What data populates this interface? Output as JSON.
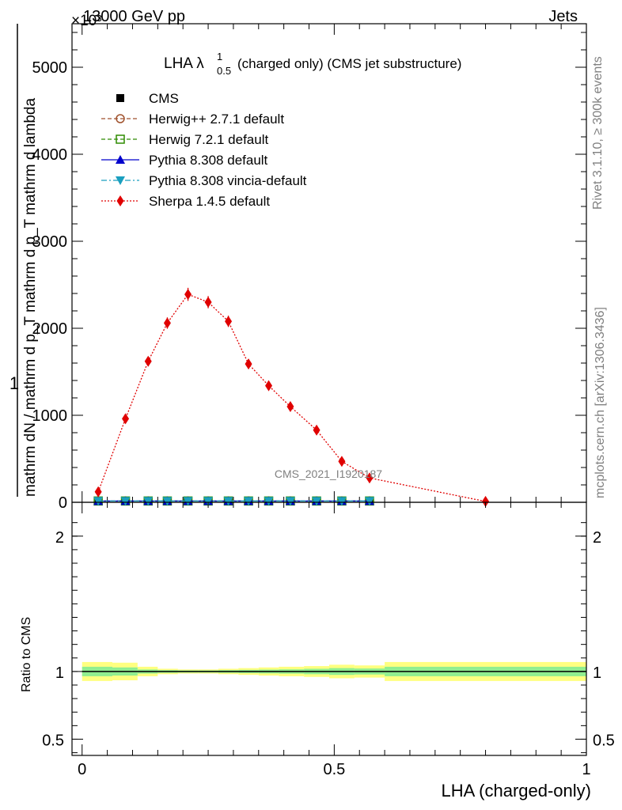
{
  "header": {
    "left": "13000 GeV pp",
    "right": "Jets",
    "exponent": "×10³"
  },
  "side": {
    "rivet": "Rivet 3.1.10, ≥ 300k events",
    "mcplots": "mcplots.cern.ch [arXiv:1306.3436]"
  },
  "watermark": "CMS_2021_I1920187",
  "chart_data": [
    {
      "type": "line",
      "title": "LHA λ",
      "title_sup": "1",
      "title_sub": "0.5",
      "title_rest": "(charged only) (CMS jet substructure)",
      "ylabel": "1 / mathrm dN / mathrm d p_T mathrm d p_T mathrm d lambda  mathrm d²N",
      "ylim": [
        0,
        5500000
      ],
      "yticks": [
        {
          "v": 0,
          "label": "0"
        },
        {
          "v": 1000000,
          "label": "1000"
        },
        {
          "v": 2000000,
          "label": "2000"
        },
        {
          "v": 3000000,
          "label": "3000"
        },
        {
          "v": 4000000,
          "label": "4000"
        },
        {
          "v": 5000000,
          "label": "5000"
        }
      ],
      "xlim": [
        -0.02,
        1.0
      ],
      "legend_position": "top-left",
      "series": [
        {
          "name": "CMS",
          "style": "data",
          "color": "#000000",
          "x": [
            0.032,
            0.086,
            0.131,
            0.169,
            0.21,
            0.25,
            0.29,
            0.33,
            0.37,
            0.413,
            0.465,
            0.515,
            0.57
          ],
          "y": [
            15000,
            15000,
            15000,
            15000,
            15000,
            15000,
            15000,
            15000,
            15000,
            15000,
            15000,
            15000,
            15000
          ]
        },
        {
          "name": "Herwig++ 2.7.1 default",
          "style": "dashed",
          "color": "#a0522d",
          "marker": "open-circle",
          "x": [
            0.032,
            0.086,
            0.131,
            0.169,
            0.21,
            0.25,
            0.29,
            0.33,
            0.37,
            0.413,
            0.465,
            0.515,
            0.57
          ],
          "y": [
            15000,
            15000,
            15000,
            15000,
            15000,
            15000,
            15000,
            15000,
            15000,
            15000,
            15000,
            15000,
            15000
          ]
        },
        {
          "name": "Herwig 7.2.1 default",
          "style": "dashed",
          "color": "#2e8b00",
          "marker": "open-square",
          "x": [
            0.032,
            0.086,
            0.131,
            0.169,
            0.21,
            0.25,
            0.29,
            0.33,
            0.37,
            0.413,
            0.465,
            0.515,
            0.57
          ],
          "y": [
            15000,
            15000,
            15000,
            15000,
            15000,
            15000,
            15000,
            15000,
            15000,
            15000,
            15000,
            15000,
            15000
          ]
        },
        {
          "name": "Pythia 8.308 default",
          "style": "solid",
          "color": "#0000cc",
          "marker": "triangle-up",
          "x": [
            0.032,
            0.086,
            0.131,
            0.169,
            0.21,
            0.25,
            0.29,
            0.33,
            0.37,
            0.413,
            0.465,
            0.515,
            0.57
          ],
          "y": [
            15000,
            15000,
            15000,
            15000,
            15000,
            15000,
            15000,
            15000,
            15000,
            15000,
            15000,
            15000,
            15000
          ]
        },
        {
          "name": "Pythia 8.308 vincia-default",
          "style": "dashdot",
          "color": "#1a9fbf",
          "marker": "triangle-down",
          "x": [
            0.032,
            0.086,
            0.131,
            0.169,
            0.21,
            0.25,
            0.29,
            0.33,
            0.37,
            0.413,
            0.465,
            0.515,
            0.57
          ],
          "y": [
            15000,
            15000,
            15000,
            15000,
            15000,
            15000,
            15000,
            15000,
            15000,
            15000,
            15000,
            15000,
            15000
          ]
        },
        {
          "name": "Sherpa 1.4.5 default",
          "style": "dotted",
          "color": "#e00000",
          "marker": "diamond",
          "x": [
            0.032,
            0.086,
            0.131,
            0.169,
            0.21,
            0.25,
            0.29,
            0.33,
            0.37,
            0.413,
            0.465,
            0.515,
            0.57,
            0.8
          ],
          "y": [
            120000,
            960000,
            1620000,
            2060000,
            2390000,
            2300000,
            2080000,
            1590000,
            1340000,
            1100000,
            830000,
            470000,
            280000,
            10000
          ],
          "err": [
            30000,
            40000,
            55000,
            65000,
            75000,
            70000,
            65000,
            55000,
            50000,
            45000,
            40000,
            30000,
            25000,
            5000
          ]
        }
      ]
    },
    {
      "type": "area",
      "ylabel": "Ratio to CMS",
      "xlabel": "LHA (charged-only)",
      "ylim": [
        0.38,
        2.25
      ],
      "yticks": [
        {
          "v": 0.5,
          "label": "0.5"
        },
        {
          "v": 1,
          "label": "1"
        },
        {
          "v": 2,
          "label": "2"
        }
      ],
      "xticks": [
        {
          "v": 0,
          "label": "0"
        },
        {
          "v": 0.5,
          "label": "0.5"
        },
        {
          "v": 1,
          "label": "1"
        }
      ],
      "xlim": [
        -0.02,
        1.0
      ],
      "bins": [
        {
          "x0": 0.0,
          "x1": 0.06,
          "stat": 0.035,
          "tot": 0.07
        },
        {
          "x0": 0.06,
          "x1": 0.11,
          "stat": 0.03,
          "tot": 0.065
        },
        {
          "x0": 0.11,
          "x1": 0.15,
          "stat": 0.015,
          "tot": 0.035
        },
        {
          "x0": 0.15,
          "x1": 0.19,
          "stat": 0.01,
          "tot": 0.02
        },
        {
          "x0": 0.19,
          "x1": 0.23,
          "stat": 0.008,
          "tot": 0.015
        },
        {
          "x0": 0.23,
          "x1": 0.27,
          "stat": 0.008,
          "tot": 0.015
        },
        {
          "x0": 0.27,
          "x1": 0.31,
          "stat": 0.01,
          "tot": 0.02
        },
        {
          "x0": 0.31,
          "x1": 0.35,
          "stat": 0.012,
          "tot": 0.025
        },
        {
          "x0": 0.35,
          "x1": 0.39,
          "stat": 0.014,
          "tot": 0.03
        },
        {
          "x0": 0.39,
          "x1": 0.44,
          "stat": 0.016,
          "tot": 0.035
        },
        {
          "x0": 0.44,
          "x1": 0.49,
          "stat": 0.02,
          "tot": 0.04
        },
        {
          "x0": 0.49,
          "x1": 0.54,
          "stat": 0.025,
          "tot": 0.05
        },
        {
          "x0": 0.54,
          "x1": 0.6,
          "stat": 0.022,
          "tot": 0.045
        },
        {
          "x0": 0.6,
          "x1": 1.0,
          "stat": 0.035,
          "tot": 0.07
        }
      ],
      "band_colors": {
        "stat": "#90ee90",
        "tot": "#ffff80"
      },
      "reference": 1
    }
  ]
}
